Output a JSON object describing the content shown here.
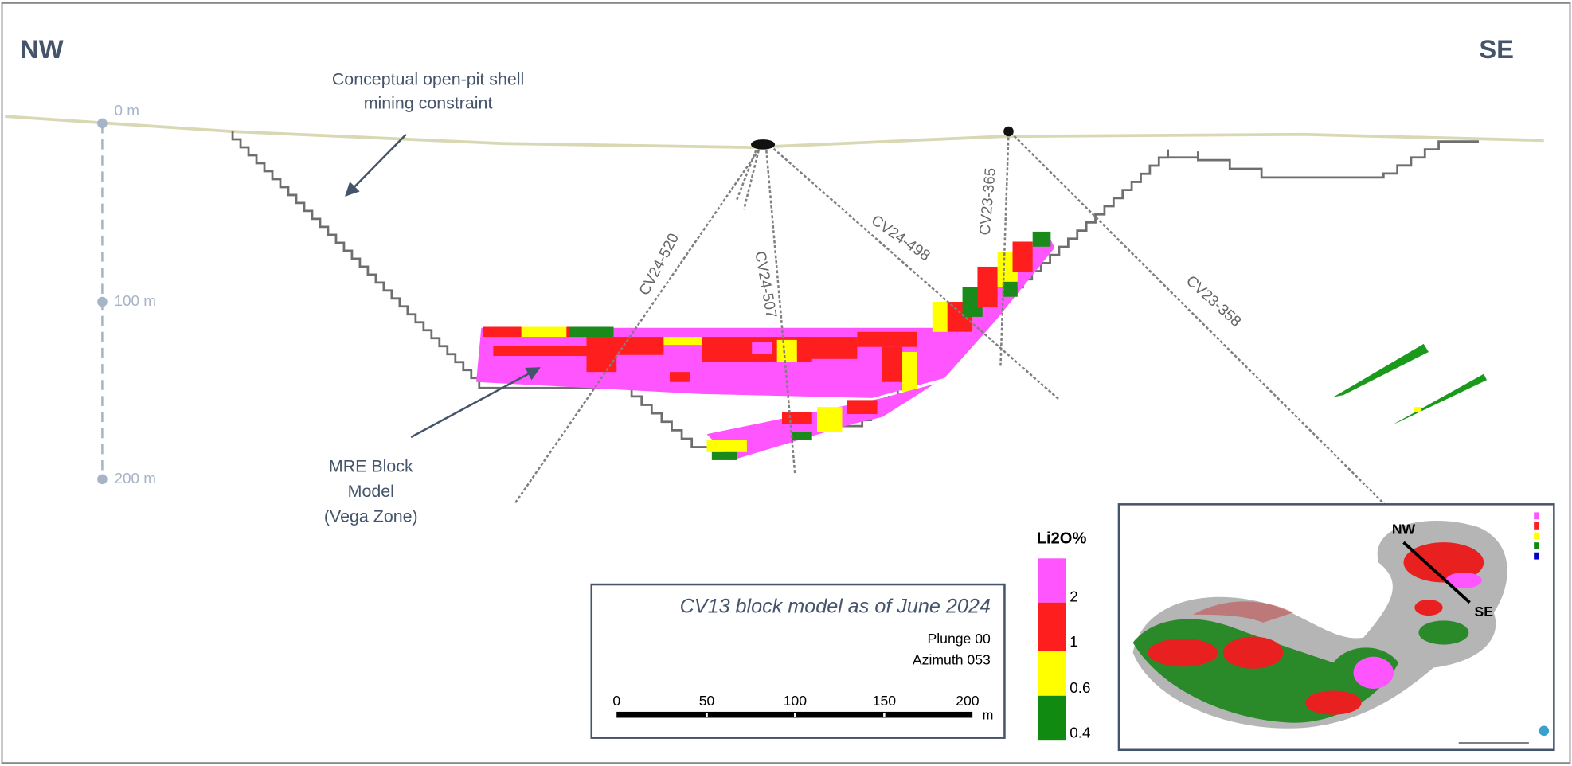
{
  "directions": {
    "left": "NW",
    "right": "SE"
  },
  "pit_note": {
    "lines": [
      "Conceptual open-pit shell",
      "mining constraint"
    ]
  },
  "depth_scale": {
    "labels": [
      "0 m",
      "100 m",
      "200 m"
    ]
  },
  "drill_holes": [
    "CV24-520",
    "CV24-507",
    "CV24-498",
    "CV23-365",
    "CV23-358"
  ],
  "block_note": {
    "lines": [
      "MRE Block",
      "Model",
      "(Vega Zone)"
    ]
  },
  "info_box": {
    "title": "CV13 block model as of June 2024",
    "plunge": "Plunge 00",
    "azimuth": "Azimuth 053",
    "scale_labels": [
      "0",
      "50",
      "100",
      "150",
      "200"
    ],
    "scale_unit": "m"
  },
  "legend": {
    "title": "Li2O%",
    "labels": [
      "2",
      "1",
      "0.6",
      "0.4"
    ]
  },
  "inset": {
    "left": "NW",
    "right": "SE"
  }
}
